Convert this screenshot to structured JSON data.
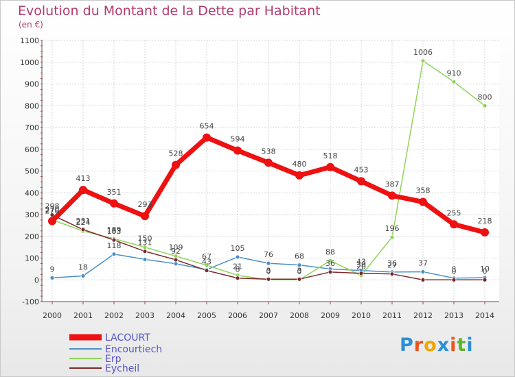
{
  "title": "Evolution du Montant de la Dette par Habitant",
  "subtitle": "(en €)",
  "logo_text": "Proxiti",
  "chart_data": {
    "type": "line",
    "x": [
      "2000",
      "2001",
      "2002",
      "2003",
      "2004",
      "2005",
      "2006",
      "2007",
      "2008",
      "2009",
      "2010",
      "2011",
      "2012",
      "2013",
      "2014"
    ],
    "ylim": [
      -100,
      1100
    ],
    "yticks": [
      "-100",
      "0",
      "100",
      "200",
      "300",
      "400",
      "500",
      "600",
      "700",
      "800",
      "900",
      "1000",
      "1100"
    ],
    "grid": true,
    "legend_position": "bottom-left",
    "series": [
      {
        "name": "LACOURT",
        "color": "#ee1111",
        "width": 7,
        "values": [
          270,
          413,
          351,
          293,
          528,
          654,
          594,
          538,
          480,
          518,
          453,
          387,
          358,
          255,
          218
        ],
        "labels": [
          "270",
          "413",
          "351",
          "293",
          "528",
          "654",
          "594",
          "538",
          "480",
          "518",
          "453",
          "387",
          "358",
          "255",
          "218"
        ]
      },
      {
        "name": "Encourtiech",
        "color": "#4a90c8",
        "width": 1.5,
        "values": [
          9,
          18,
          118,
          94,
          74,
          47,
          105,
          76,
          68,
          50,
          43,
          36,
          37,
          8,
          10
        ],
        "labels": [
          "9",
          "18",
          "118",
          "",
          "",
          "",
          "105",
          "76",
          "68",
          "",
          "43",
          "36",
          "37",
          "8",
          "10"
        ]
      },
      {
        "name": "Erp",
        "color": "#8ed45a",
        "width": 1.5,
        "values": [
          276,
          224,
          189,
          150,
          109,
          67,
          21,
          0,
          0,
          88,
          20,
          196,
          1006,
          910,
          800
        ],
        "labels": [
          "276",
          "224",
          "189",
          "150",
          "109",
          "67",
          "21",
          "0",
          "0",
          "88",
          "20",
          "196",
          "1006",
          "910",
          "800"
        ]
      },
      {
        "name": "Eycheil",
        "color": "#7a2a2a",
        "width": 1.5,
        "values": [
          298,
          231,
          183,
          131,
          92,
          43,
          8,
          3,
          3,
          36,
          30,
          27,
          0,
          0,
          0
        ],
        "labels": [
          "298",
          "231",
          "183",
          "131",
          "92",
          "43",
          "8",
          "3",
          "3",
          "36",
          "30",
          "27",
          "",
          "0",
          "0"
        ]
      }
    ]
  }
}
